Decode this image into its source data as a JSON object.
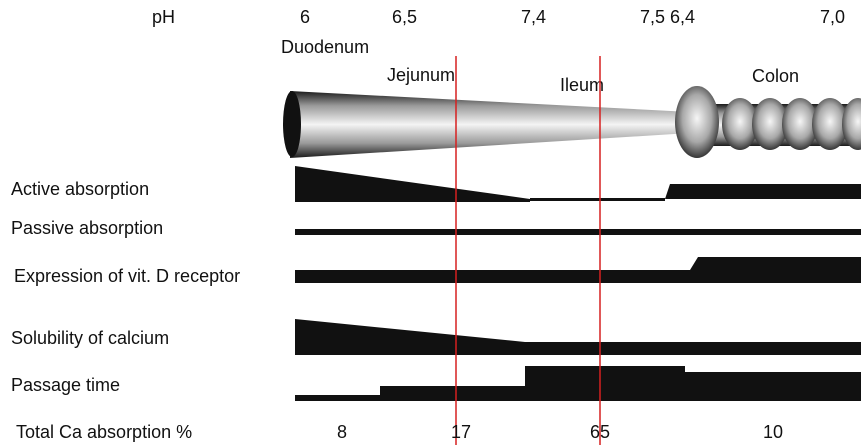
{
  "ph": {
    "label": "pH",
    "values": [
      "6",
      "6,5",
      "7,4",
      "7,5 6,4",
      "7,0"
    ]
  },
  "segments": {
    "duodenum": "Duodenum",
    "jejunum": "Jejunum",
    "ileum": "Ileum",
    "colon": "Colon"
  },
  "rows": [
    "Active absorption",
    "Passive absorption",
    "Expression of vit. D receptor",
    "Solubility of calcium",
    "Passage time"
  ],
  "total_absorption": {
    "label": "Total Ca absorption %",
    "values": [
      "8",
      "17",
      "65",
      "10"
    ]
  },
  "colors": {
    "bar": "#111111",
    "divider": "#d62020",
    "intestine_light": "#f2f2f2",
    "intestine_dark": "#111111"
  }
}
